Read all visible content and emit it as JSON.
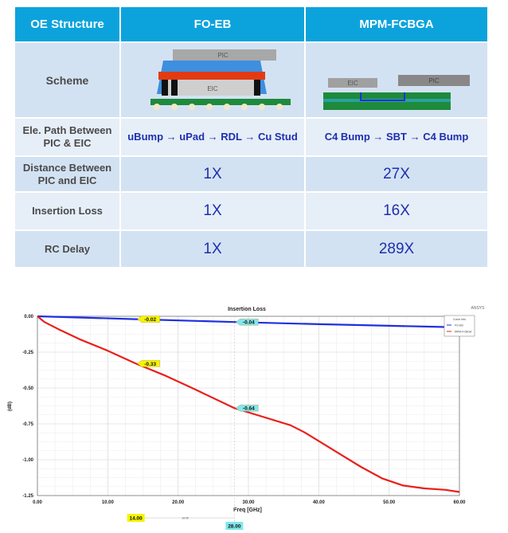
{
  "table": {
    "headers": [
      "OE Structure",
      "FO-EB",
      "MPM-FCBGA"
    ],
    "rows": [
      {
        "label": "Scheme",
        "fo_eb": "",
        "mpm": ""
      },
      {
        "label": "Ele. Path Between PIC & EIC",
        "fo_eb": "uBump → uPad → RDL → Cu Stud",
        "mpm": "C4 Bump → SBT → C4 Bump"
      },
      {
        "label": "Distance Between PIC and EIC",
        "fo_eb": "1X",
        "mpm": "27X"
      },
      {
        "label": "Insertion Loss",
        "fo_eb": "1X",
        "mpm": "16X"
      },
      {
        "label": "RC Delay",
        "fo_eb": "1X",
        "mpm": "289X"
      }
    ],
    "scheme_labels": {
      "pic": "PIC",
      "eic": "EIC"
    }
  },
  "chart_data": {
    "type": "line",
    "title": "Insertion Loss",
    "watermark": "ANSYS",
    "xlabel": "Freq [GHz]",
    "ylabel": "(dB)",
    "xlim": [
      0,
      60
    ],
    "ylim": [
      -1.25,
      0
    ],
    "xticks": [
      "0.00",
      "10.00",
      "20.00",
      "30.00",
      "40.00",
      "50.00",
      "60.00"
    ],
    "yticks": [
      "0.00",
      "-0.25",
      "-0.50",
      "-0.75",
      "-1.00",
      "-1.25"
    ],
    "grid": true,
    "legend": {
      "title": "Curve Info",
      "placement": "top-right"
    },
    "series": [
      {
        "name": "FO-EB",
        "color": "#1f2fe0",
        "x": [
          0,
          14,
          28,
          40,
          50,
          60
        ],
        "y": [
          0,
          -0.02,
          -0.04,
          -0.055,
          -0.066,
          -0.077
        ]
      },
      {
        "name": "MPM-FCBGA",
        "color": "#e8201a",
        "x": [
          0,
          1,
          3,
          6,
          10,
          14,
          18,
          22,
          28,
          32,
          36,
          38,
          40,
          43,
          46,
          49,
          52,
          55,
          58,
          60
        ],
        "y": [
          0,
          -0.04,
          -0.09,
          -0.16,
          -0.24,
          -0.33,
          -0.41,
          -0.5,
          -0.64,
          -0.7,
          -0.76,
          -0.81,
          -0.87,
          -0.96,
          -1.05,
          -1.13,
          -1.18,
          -1.2,
          -1.21,
          -1.225
        ]
      }
    ],
    "markers": [
      {
        "label": "-0.02",
        "x": 14,
        "y": -0.02,
        "color": "#f5f500"
      },
      {
        "label": "-0.04",
        "x": 28,
        "y": -0.04,
        "color": "#7fe8ec"
      },
      {
        "label": "-0.33",
        "x": 14,
        "y": -0.33,
        "color": "#f5f500"
      },
      {
        "label": "-0.64",
        "x": 28,
        "y": -0.64,
        "color": "#7fe8ec"
      }
    ],
    "x_markers": [
      {
        "label": "14.00",
        "x": 14,
        "color": "#f5f500"
      },
      {
        "label": "28.00",
        "x": 28,
        "color": "#7fe8ec"
      }
    ],
    "x_delta_label": "14.00"
  }
}
